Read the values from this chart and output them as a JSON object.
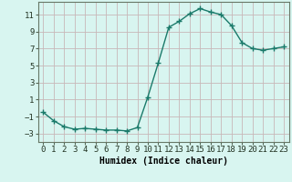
{
  "x": [
    0,
    1,
    2,
    3,
    4,
    5,
    6,
    7,
    8,
    9,
    10,
    11,
    12,
    13,
    14,
    15,
    16,
    17,
    18,
    19,
    20,
    21,
    22,
    23
  ],
  "y": [
    -0.5,
    -1.5,
    -2.2,
    -2.5,
    -2.4,
    -2.5,
    -2.6,
    -2.6,
    -2.7,
    -2.3,
    1.3,
    5.3,
    9.5,
    10.2,
    11.1,
    11.7,
    11.3,
    11.0,
    9.7,
    7.7,
    7.0,
    6.8,
    7.0,
    7.2
  ],
  "line_color": "#1a7a6a",
  "marker": "+",
  "marker_size": 4,
  "line_width": 1.0,
  "background_color": "#d8f5f0",
  "grid_color": "#c8b8b8",
  "xlabel": "Humidex (Indice chaleur)",
  "xlabel_fontsize": 7,
  "tick_fontsize": 6.5,
  "ylim": [
    -4,
    12.5
  ],
  "yticks": [
    -3,
    -1,
    1,
    3,
    5,
    7,
    9,
    11
  ],
  "xlim": [
    -0.5,
    23.5
  ],
  "xticks": [
    0,
    1,
    2,
    3,
    4,
    5,
    6,
    7,
    8,
    9,
    10,
    11,
    12,
    13,
    14,
    15,
    16,
    17,
    18,
    19,
    20,
    21,
    22,
    23
  ]
}
